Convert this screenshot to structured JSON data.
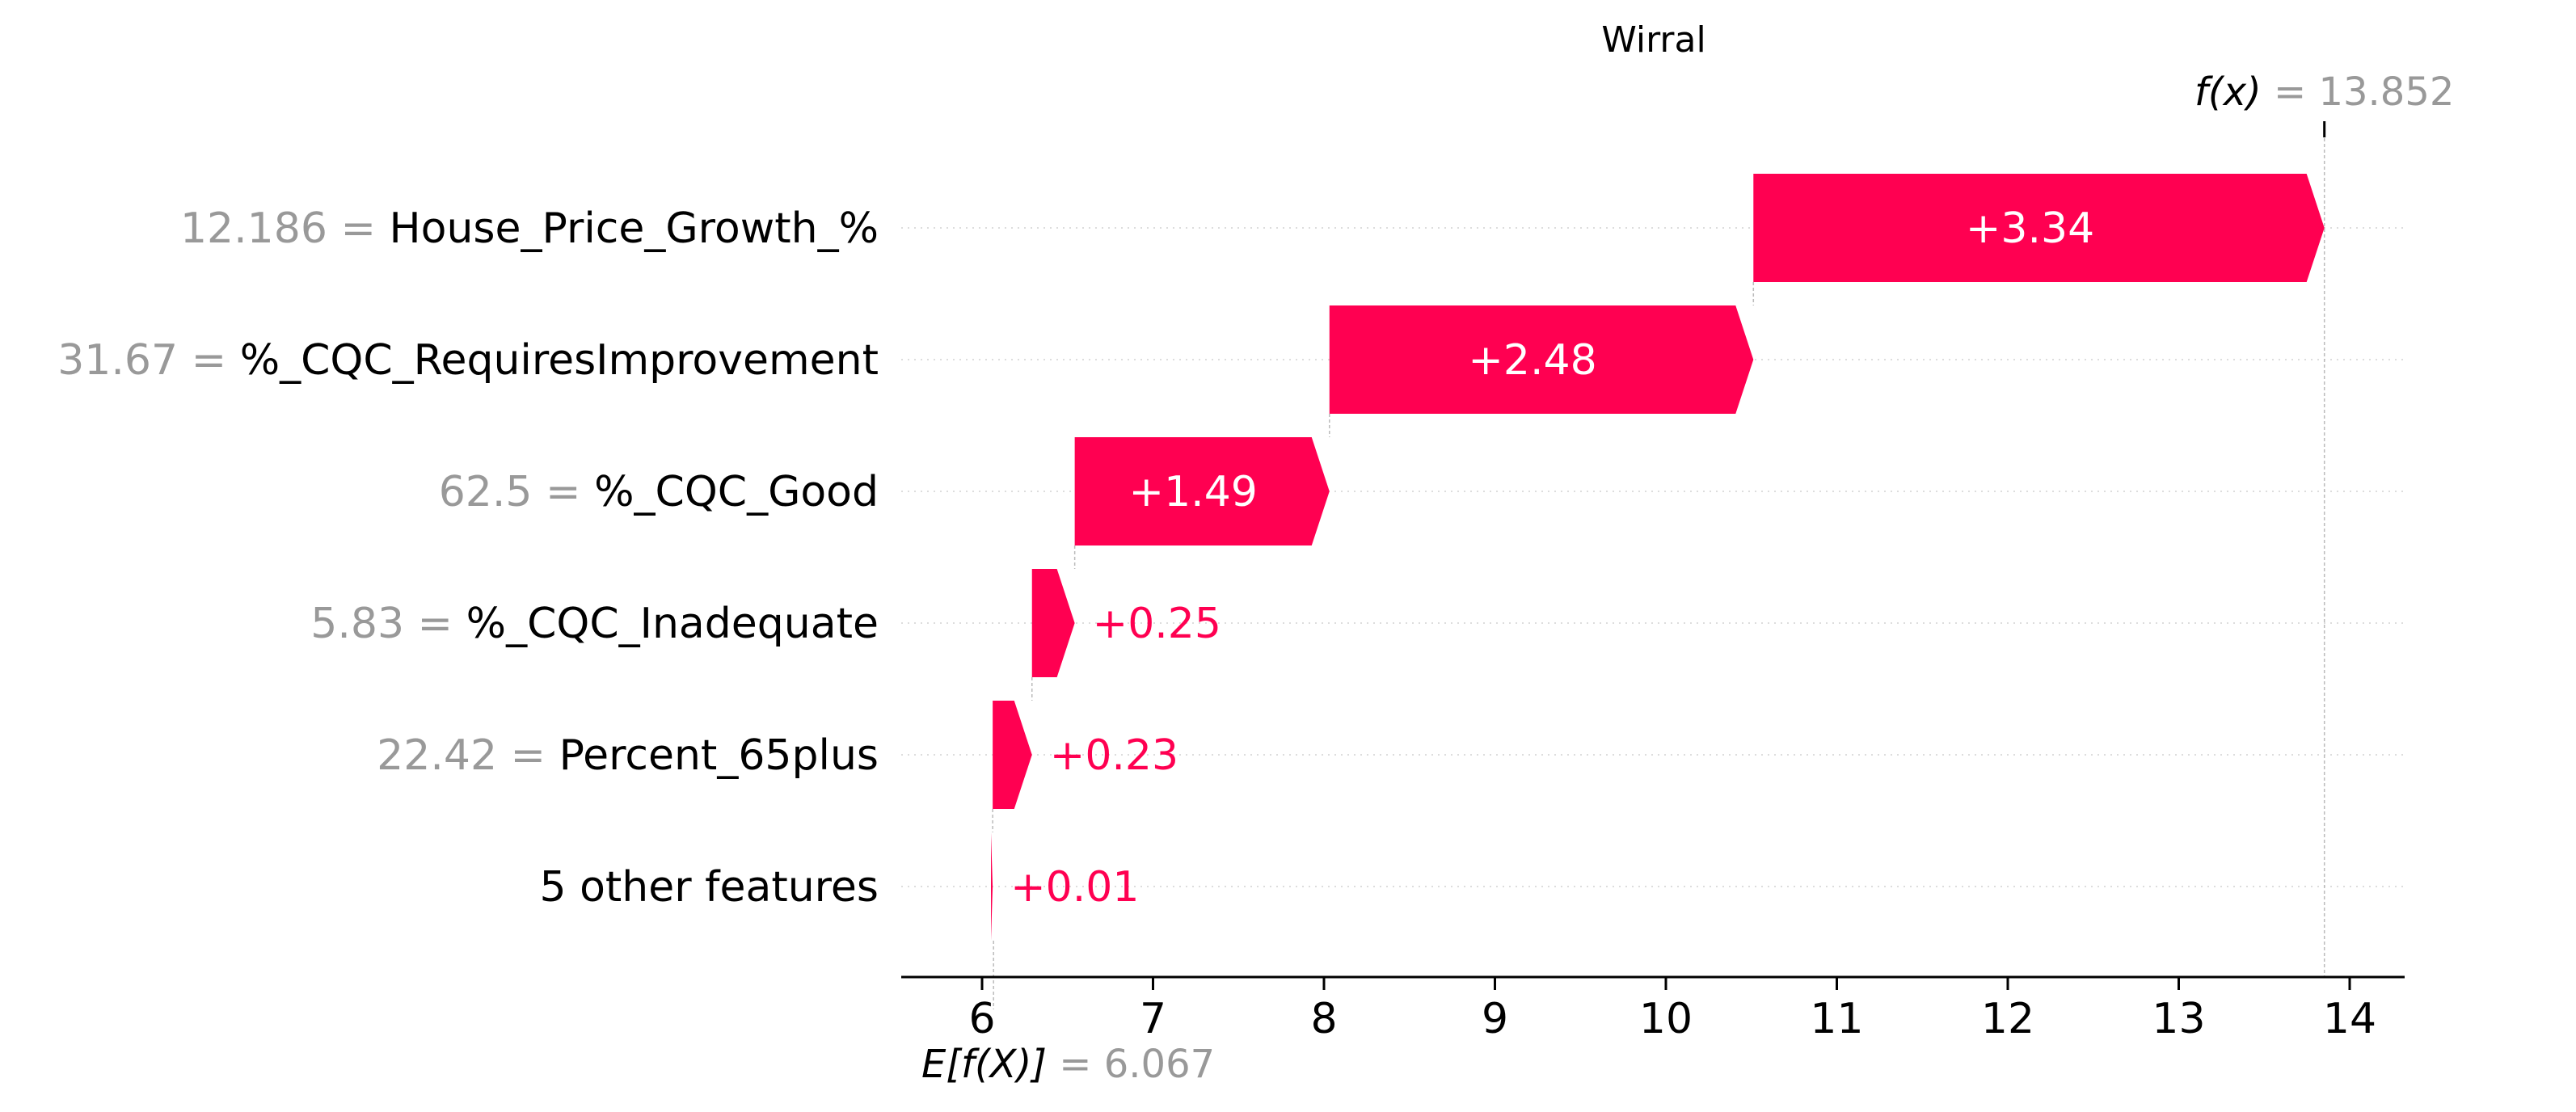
{
  "chart_data": {
    "type": "waterfall",
    "title": "Wirral",
    "fx_label": "f(x)",
    "fx_value": "13.852",
    "base_label": "E[f(X)]",
    "base_value": "6.067",
    "base": 6.067,
    "final": 13.852,
    "xlim": [
      5.5,
      14.3
    ],
    "xticks": [
      6,
      7,
      8,
      9,
      10,
      11,
      12,
      13,
      14
    ],
    "colors": {
      "positive": "#ff0051",
      "value_gray": "#999999",
      "text": "#000000"
    },
    "features": [
      {
        "value": "12.186",
        "name": "House_Price_Growth_%",
        "contribution": 3.34,
        "label": "+3.34"
      },
      {
        "value": "31.67",
        "name": "%_CQC_RequiresImprovement",
        "contribution": 2.48,
        "label": "+2.48"
      },
      {
        "value": "62.5",
        "name": "%_CQC_Good",
        "contribution": 1.49,
        "label": "+1.49"
      },
      {
        "value": "5.83",
        "name": "%_CQC_Inadequate",
        "contribution": 0.25,
        "label": "+0.25"
      },
      {
        "value": "22.42",
        "name": "Percent_65plus",
        "contribution": 0.23,
        "label": "+0.23"
      },
      {
        "value": "",
        "name": "5 other features",
        "contribution": 0.01,
        "label": "+0.01"
      }
    ]
  }
}
